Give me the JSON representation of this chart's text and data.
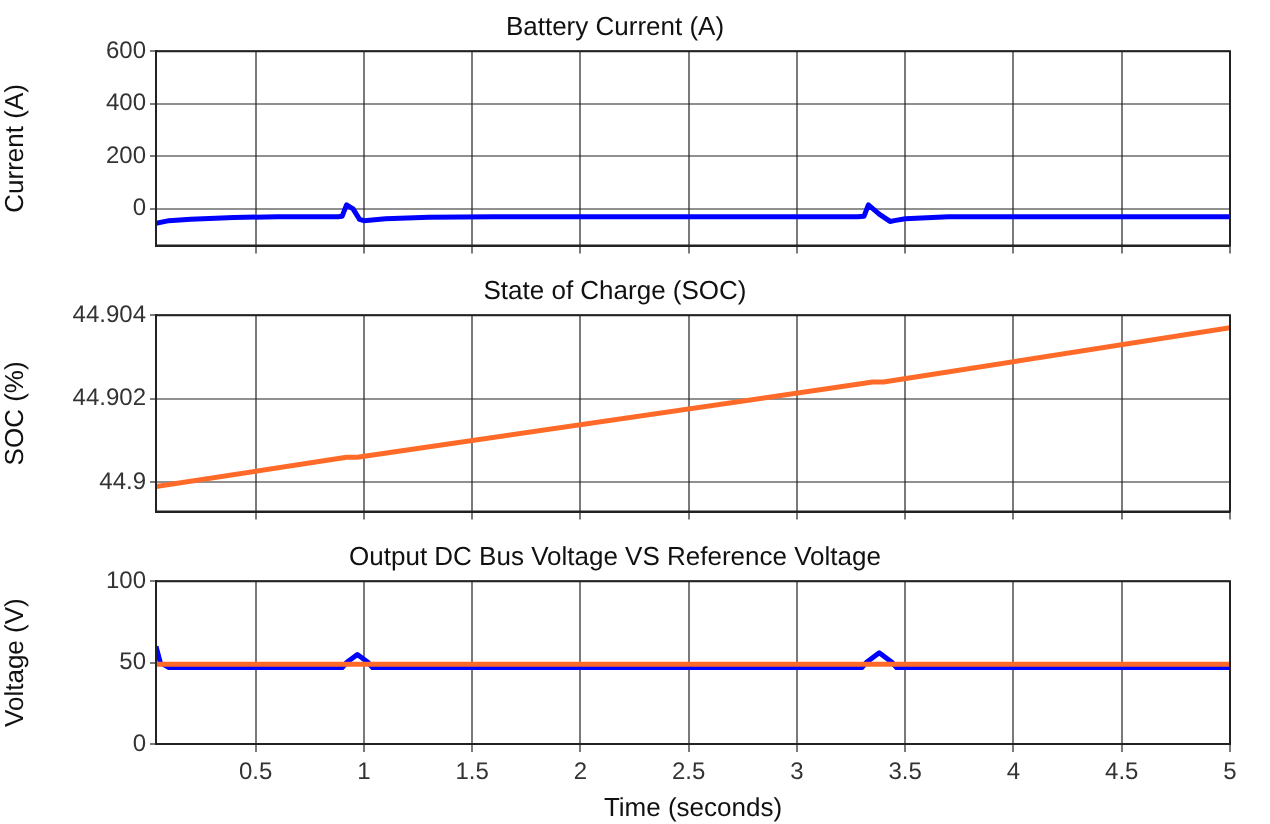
{
  "chart_data": [
    {
      "type": "line",
      "title": "Battery Current (A)",
      "ylabel": "Current (A)",
      "xlim": [
        0.04,
        5
      ],
      "xticks": [
        0.5,
        1,
        1.5,
        2,
        2.5,
        3,
        3.5,
        4,
        4.5,
        5
      ],
      "ylim": [
        -140,
        600
      ],
      "yticks": [
        0,
        200,
        400,
        600
      ],
      "grid": true,
      "tick_labels": "y",
      "x": [
        0.04,
        0.1,
        0.2,
        0.4,
        0.6,
        0.88,
        0.9,
        0.92,
        0.95,
        0.98,
        1.0,
        1.1,
        1.3,
        1.6,
        2,
        3,
        3.28,
        3.31,
        3.33,
        3.38,
        3.43,
        3.45,
        3.5,
        3.7,
        4,
        5
      ],
      "series": [
        {
          "color": "#0000ff",
          "values": [
            -55,
            -45,
            -40,
            -33,
            -30,
            -30,
            -28,
            15,
            0,
            -40,
            -45,
            -38,
            -32,
            -30,
            -30,
            -30,
            -30,
            -28,
            15,
            -20,
            -48,
            -45,
            -38,
            -30,
            -30,
            -30
          ]
        }
      ]
    },
    {
      "type": "line",
      "title": "State of Charge (SOC)",
      "ylabel": "SOC (%)",
      "xlim": [
        0.04,
        5
      ],
      "xticks": [
        0.5,
        1,
        1.5,
        2,
        2.5,
        3,
        3.5,
        4,
        4.5,
        5
      ],
      "ylim": [
        44.8993,
        44.904
      ],
      "yticks": [
        44.9,
        44.902,
        44.904
      ],
      "grid": true,
      "tick_labels": "y",
      "x": [
        0.04,
        0.92,
        0.97,
        3.35,
        3.4,
        5
      ],
      "series": [
        {
          "color": "#ff6a29",
          "values": [
            44.8999,
            44.9006,
            44.9006,
            44.9024,
            44.9024,
            44.9037
          ]
        }
      ]
    },
    {
      "type": "line",
      "title": "Output DC Bus Voltage VS Reference Voltage",
      "xlabel": "Time (seconds)",
      "ylabel": "Voltage (V)",
      "xlim": [
        0.04,
        5
      ],
      "xticks": [
        0.5,
        1,
        1.5,
        2,
        2.5,
        3,
        3.5,
        4,
        4.5,
        5
      ],
      "ylim": [
        0,
        100
      ],
      "yticks": [
        0,
        50,
        100
      ],
      "grid": true,
      "x": [
        0.04,
        0.06,
        0.1,
        0.9,
        0.92,
        0.97,
        1.02,
        1.04,
        3.3,
        3.32,
        3.38,
        3.44,
        3.46,
        5
      ],
      "series": [
        {
          "color": "#ff6a29",
          "x": [
            0.04,
            5
          ],
          "values": [
            49,
            49
          ]
        },
        {
          "color": "#0000ff",
          "values": [
            60,
            50,
            47,
            47,
            50,
            55,
            50,
            47,
            47,
            50,
            56,
            50,
            47,
            47
          ]
        }
      ]
    }
  ]
}
